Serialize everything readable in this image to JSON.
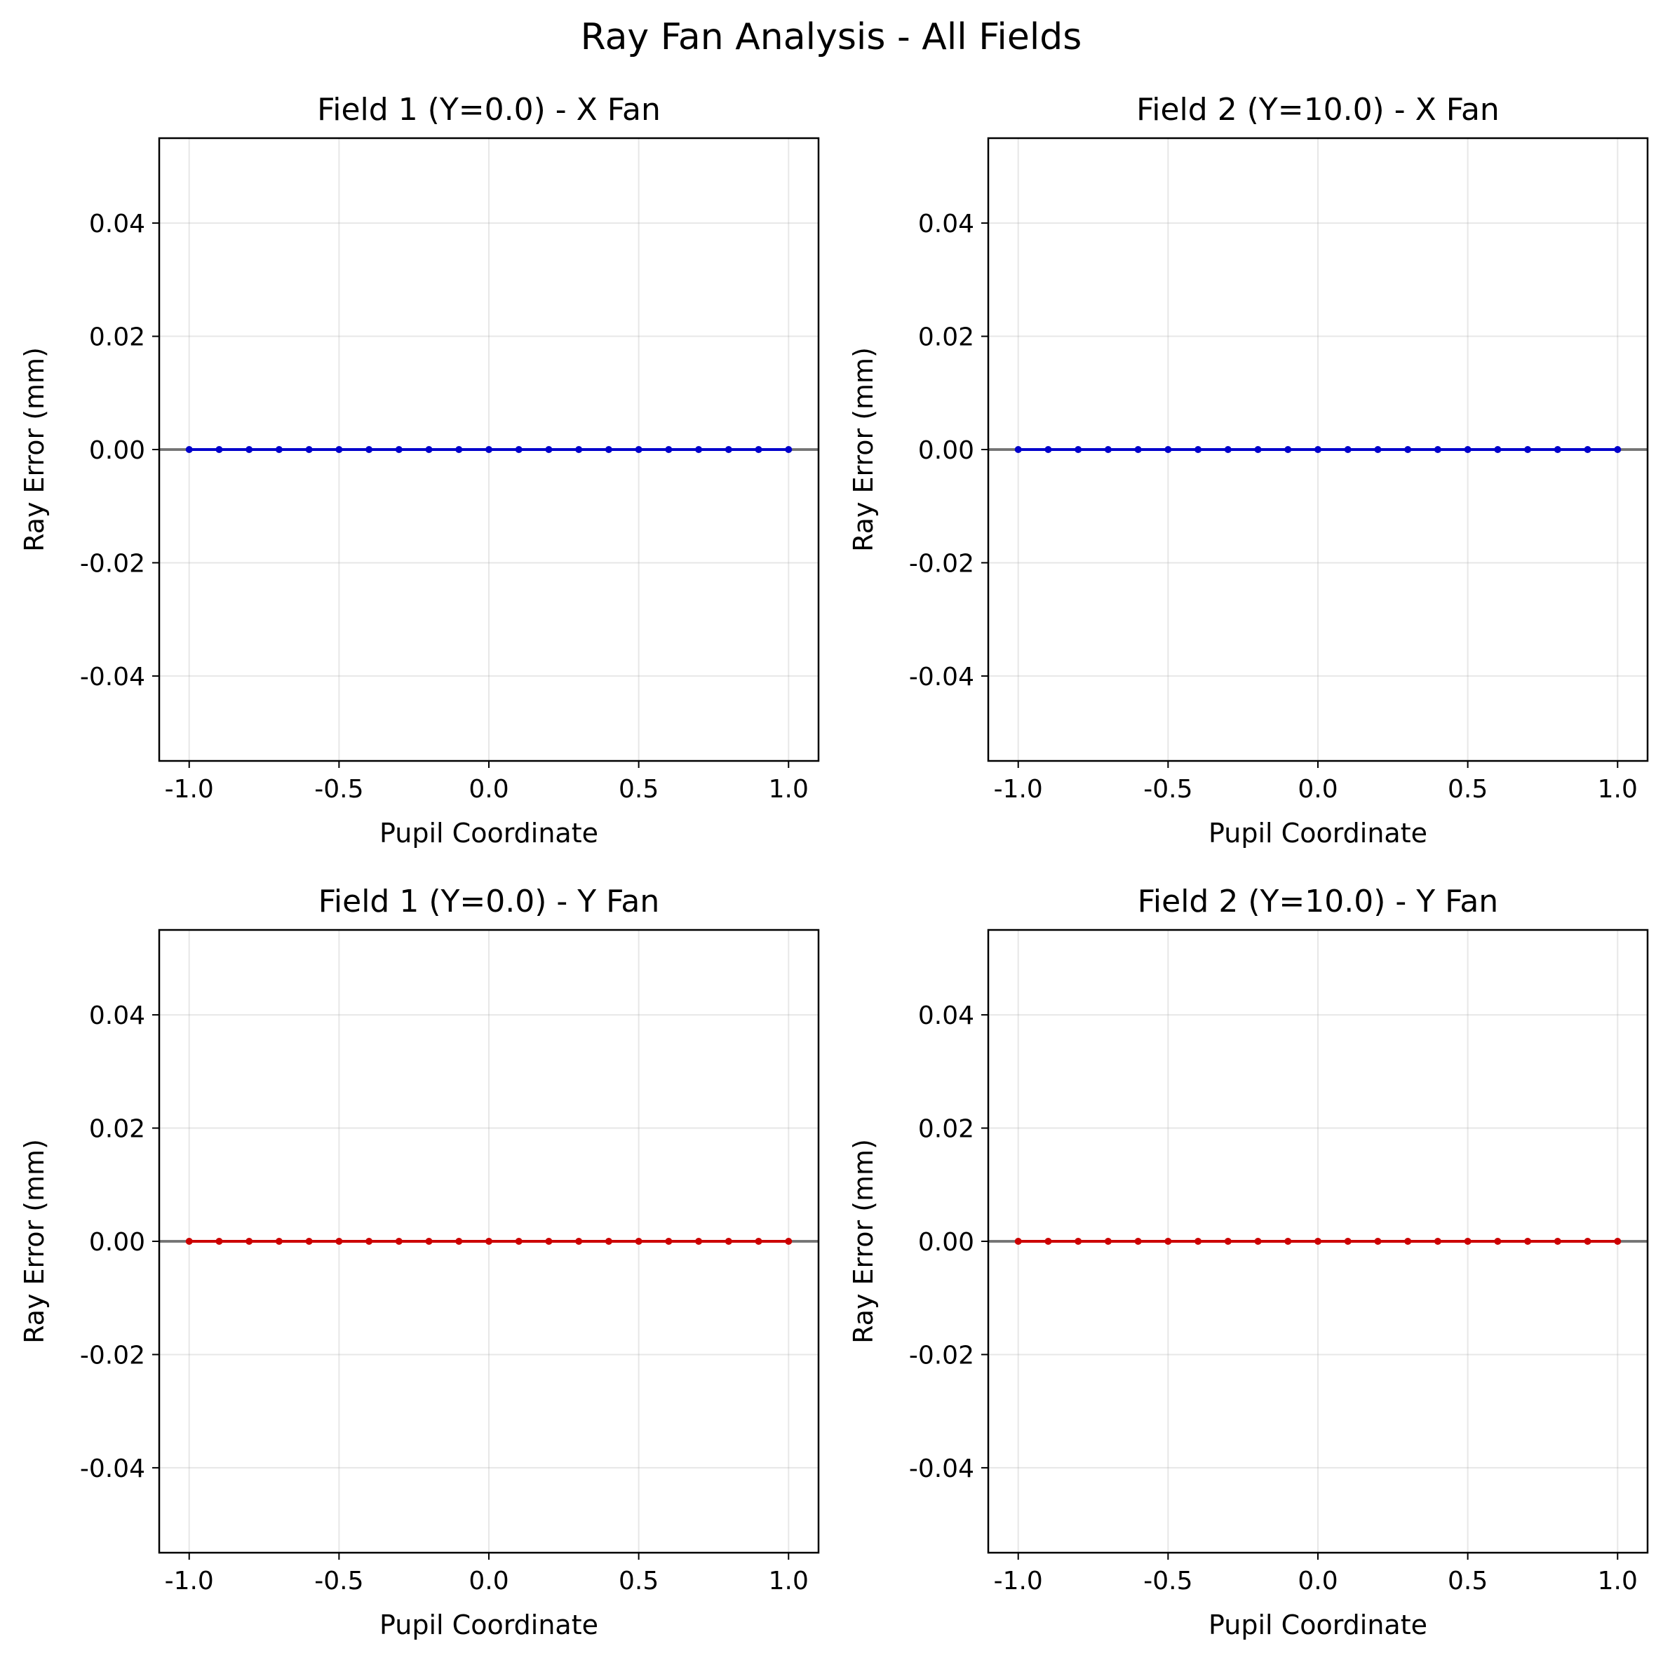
{
  "figure": {
    "title": "Ray Fan Analysis - All Fields"
  },
  "chart_data": [
    {
      "type": "line",
      "title": "Field 1 (Y=0.0) - X Fan",
      "xlabel": "Pupil Coordinate",
      "ylabel": "Ray Error (mm)",
      "xlim": [
        -1.1,
        1.1
      ],
      "ylim": [
        -0.055,
        0.055
      ],
      "xticks": [
        -1.0,
        -0.5,
        0.0,
        0.5,
        1.0
      ],
      "xtick_labels": [
        "-1.0",
        "-0.5",
        "0.0",
        "0.5",
        "1.0"
      ],
      "yticks": [
        -0.04,
        -0.02,
        0.0,
        0.02,
        0.04
      ],
      "ytick_labels": [
        "-0.04",
        "-0.02",
        "0.00",
        "0.02",
        "0.04"
      ],
      "grid": true,
      "reference_line_y": 0.0,
      "series": [
        {
          "color": "#0000cc",
          "x": [
            -1.0,
            -0.9,
            -0.8,
            -0.7,
            -0.6,
            -0.5,
            -0.4,
            -0.3,
            -0.2,
            -0.1,
            0.0,
            0.1,
            0.2,
            0.3,
            0.4,
            0.5,
            0.6,
            0.7,
            0.8,
            0.9,
            1.0
          ],
          "y": [
            0,
            0,
            0,
            0,
            0,
            0,
            0,
            0,
            0,
            0,
            0,
            0,
            0,
            0,
            0,
            0,
            0,
            0,
            0,
            0,
            0
          ]
        }
      ]
    },
    {
      "type": "line",
      "title": "Field 2 (Y=10.0) - X Fan",
      "xlabel": "Pupil Coordinate",
      "ylabel": "Ray Error (mm)",
      "xlim": [
        -1.1,
        1.1
      ],
      "ylim": [
        -0.055,
        0.055
      ],
      "xticks": [
        -1.0,
        -0.5,
        0.0,
        0.5,
        1.0
      ],
      "xtick_labels": [
        "-1.0",
        "-0.5",
        "0.0",
        "0.5",
        "1.0"
      ],
      "yticks": [
        -0.04,
        -0.02,
        0.0,
        0.02,
        0.04
      ],
      "ytick_labels": [
        "-0.04",
        "-0.02",
        "0.00",
        "0.02",
        "0.04"
      ],
      "grid": true,
      "reference_line_y": 0.0,
      "series": [
        {
          "color": "#0000cc",
          "x": [
            -1.0,
            -0.9,
            -0.8,
            -0.7,
            -0.6,
            -0.5,
            -0.4,
            -0.3,
            -0.2,
            -0.1,
            0.0,
            0.1,
            0.2,
            0.3,
            0.4,
            0.5,
            0.6,
            0.7,
            0.8,
            0.9,
            1.0
          ],
          "y": [
            0,
            0,
            0,
            0,
            0,
            0,
            0,
            0,
            0,
            0,
            0,
            0,
            0,
            0,
            0,
            0,
            0,
            0,
            0,
            0,
            0
          ]
        }
      ]
    },
    {
      "type": "line",
      "title": "Field 1 (Y=0.0) - Y Fan",
      "xlabel": "Pupil Coordinate",
      "ylabel": "Ray Error (mm)",
      "xlim": [
        -1.1,
        1.1
      ],
      "ylim": [
        -0.055,
        0.055
      ],
      "xticks": [
        -1.0,
        -0.5,
        0.0,
        0.5,
        1.0
      ],
      "xtick_labels": [
        "-1.0",
        "-0.5",
        "0.0",
        "0.5",
        "1.0"
      ],
      "yticks": [
        -0.04,
        -0.02,
        0.0,
        0.02,
        0.04
      ],
      "ytick_labels": [
        "-0.04",
        "-0.02",
        "0.00",
        "0.02",
        "0.04"
      ],
      "grid": true,
      "reference_line_y": 0.0,
      "series": [
        {
          "color": "#cc0000",
          "x": [
            -1.0,
            -0.9,
            -0.8,
            -0.7,
            -0.6,
            -0.5,
            -0.4,
            -0.3,
            -0.2,
            -0.1,
            0.0,
            0.1,
            0.2,
            0.3,
            0.4,
            0.5,
            0.6,
            0.7,
            0.8,
            0.9,
            1.0
          ],
          "y": [
            0,
            0,
            0,
            0,
            0,
            0,
            0,
            0,
            0,
            0,
            0,
            0,
            0,
            0,
            0,
            0,
            0,
            0,
            0,
            0,
            0
          ]
        }
      ]
    },
    {
      "type": "line",
      "title": "Field 2 (Y=10.0) - Y Fan",
      "xlabel": "Pupil Coordinate",
      "ylabel": "Ray Error (mm)",
      "xlim": [
        -1.1,
        1.1
      ],
      "ylim": [
        -0.055,
        0.055
      ],
      "xticks": [
        -1.0,
        -0.5,
        0.0,
        0.5,
        1.0
      ],
      "xtick_labels": [
        "-1.0",
        "-0.5",
        "0.0",
        "0.5",
        "1.0"
      ],
      "yticks": [
        -0.04,
        -0.02,
        0.0,
        0.02,
        0.04
      ],
      "ytick_labels": [
        "-0.04",
        "-0.02",
        "0.00",
        "0.02",
        "0.04"
      ],
      "grid": true,
      "reference_line_y": 0.0,
      "series": [
        {
          "color": "#cc0000",
          "x": [
            -1.0,
            -0.9,
            -0.8,
            -0.7,
            -0.6,
            -0.5,
            -0.4,
            -0.3,
            -0.2,
            -0.1,
            0.0,
            0.1,
            0.2,
            0.3,
            0.4,
            0.5,
            0.6,
            0.7,
            0.8,
            0.9,
            1.0
          ],
          "y": [
            0,
            0,
            0,
            0,
            0,
            0,
            0,
            0,
            0,
            0,
            0,
            0,
            0,
            0,
            0,
            0,
            0,
            0,
            0,
            0,
            0
          ]
        }
      ]
    }
  ]
}
